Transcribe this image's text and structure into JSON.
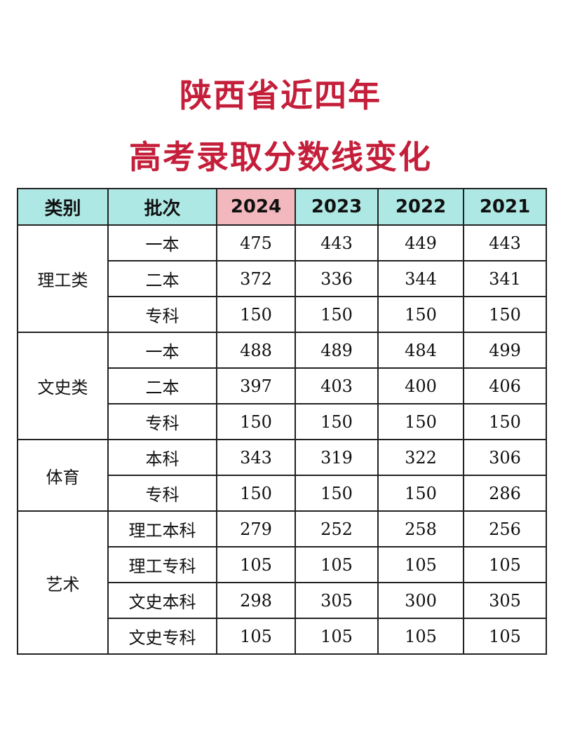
{
  "title": {
    "line1": "陕西省近四年",
    "line2": "高考录取分数线变化"
  },
  "table": {
    "headers": [
      "类别",
      "批次",
      "2024",
      "2023",
      "2022",
      "2021"
    ],
    "groups": [
      {
        "category": "理工类",
        "rows": [
          {
            "batch": "一本",
            "values": [
              "475",
              "443",
              "449",
              "443"
            ]
          },
          {
            "batch": "二本",
            "values": [
              "372",
              "336",
              "344",
              "341"
            ]
          },
          {
            "batch": "专科",
            "values": [
              "150",
              "150",
              "150",
              "150"
            ]
          }
        ]
      },
      {
        "category": "文史类",
        "rows": [
          {
            "batch": "一本",
            "values": [
              "488",
              "489",
              "484",
              "499"
            ]
          },
          {
            "batch": "二本",
            "values": [
              "397",
              "403",
              "400",
              "406"
            ]
          },
          {
            "batch": "专科",
            "values": [
              "150",
              "150",
              "150",
              "150"
            ]
          }
        ]
      },
      {
        "category": "体育",
        "rows": [
          {
            "batch": "本科",
            "values": [
              "343",
              "319",
              "322",
              "306"
            ]
          },
          {
            "batch": "专科",
            "values": [
              "150",
              "150",
              "150",
              "286"
            ]
          }
        ]
      },
      {
        "category": "艺术",
        "rows": [
          {
            "batch": "理工本科",
            "values": [
              "279",
              "252",
              "258",
              "256"
            ]
          },
          {
            "batch": "理工专科",
            "values": [
              "105",
              "105",
              "105",
              "105"
            ]
          },
          {
            "batch": "文史本科",
            "values": [
              "298",
              "305",
              "300",
              "305"
            ]
          },
          {
            "batch": "文史专科",
            "values": [
              "105",
              "105",
              "105",
              "105"
            ]
          }
        ]
      }
    ],
    "colors": {
      "header_bg": "#aee8e4",
      "highlight_year_bg": "#f2b8be",
      "category_text": "#3366c8",
      "title_text": "#c41e3a"
    }
  }
}
